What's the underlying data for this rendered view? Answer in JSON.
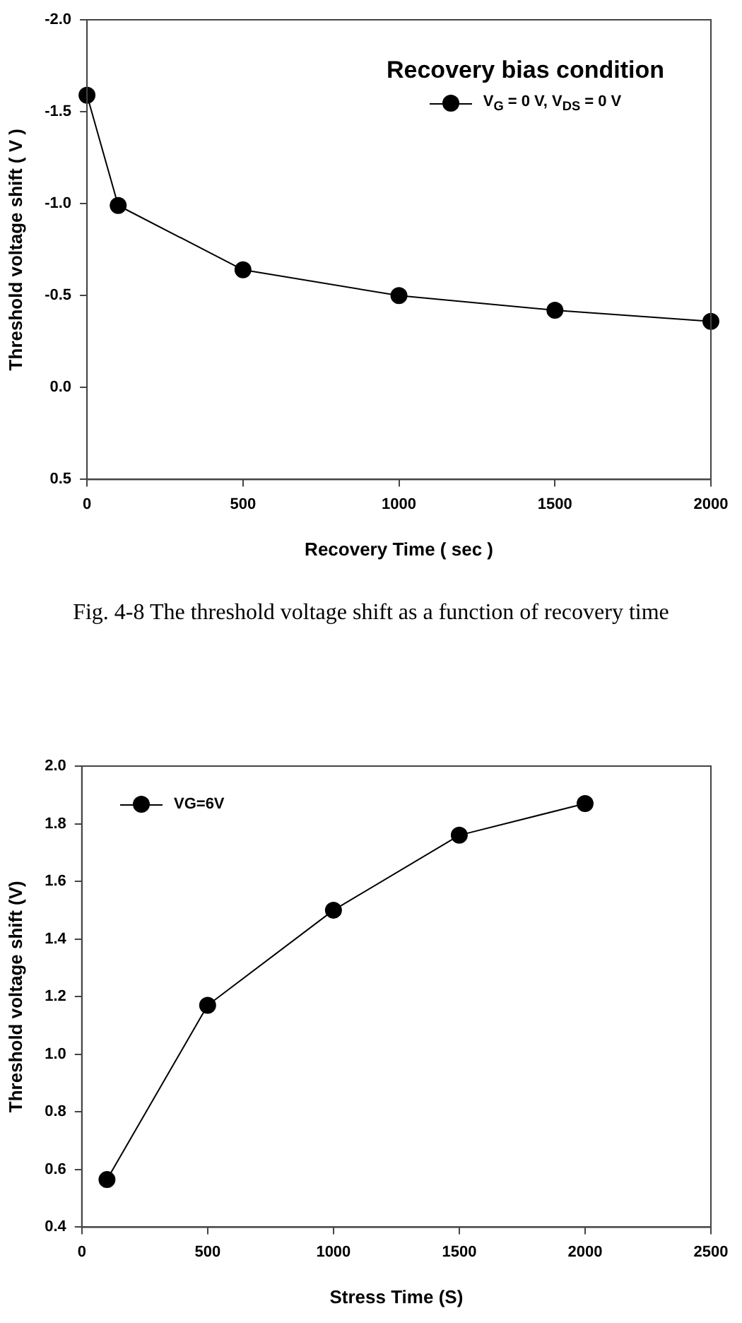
{
  "chart_data": [
    {
      "type": "line",
      "xlabel": "Recovery Time ( sec )",
      "ylabel": "Threshold voltage shift ( V )",
      "legend_title": "Recovery bias condition",
      "legend": "top right",
      "marker": "circle",
      "line_style": "solid",
      "grid": false,
      "x": [
        0,
        100,
        500,
        1000,
        1500,
        2000
      ],
      "series": [
        {
          "name": "V$_{G}$ = 0 V, V$_{DS}$ = 0 V",
          "color": "#000000",
          "values": [
            -1.59,
            -0.99,
            -0.64,
            -0.5,
            -0.42,
            -0.36
          ]
        }
      ],
      "xlim": [
        0,
        2000
      ],
      "xticks": [
        0,
        500,
        1000,
        1500,
        2000
      ],
      "ylim": [
        0.5,
        -2.0
      ],
      "yticks": [
        {
          "value": 0.5,
          "label": "0.5"
        },
        {
          "value": 0,
          "label": "0.0"
        },
        {
          "value": -0.5,
          "label": "-0.5"
        },
        {
          "value": -1,
          "label": "-1.0"
        },
        {
          "value": -1.5,
          "label": "-1.5"
        },
        {
          "value": -2,
          "label": "-2.0"
        }
      ],
      "annotations": [
        "Fig. 4-8 The threshold voltage shift as a function of recovery time"
      ]
    },
    {
      "type": "line",
      "xlabel": "Stress Time (S)",
      "ylabel": "Threshold voltage shift (V)",
      "legend": "top left",
      "marker": "circle",
      "line_style": "solid",
      "grid": false,
      "x": [
        100,
        500,
        1000,
        1500,
        2000
      ],
      "series": [
        {
          "name": "VG=6V",
          "color": "#000000",
          "values": [
            0.565,
            1.17,
            1.5,
            1.76,
            1.87
          ]
        }
      ],
      "xlim": [
        0,
        2500
      ],
      "xticks": [
        0,
        500,
        1000,
        1500,
        2000,
        2500
      ],
      "ylim": [
        0.4,
        2.0
      ],
      "yticks": [
        {
          "value": 0.4,
          "label": "0.4"
        },
        {
          "value": 0.6,
          "label": "0.6"
        },
        {
          "value": 0.8,
          "label": "0.8"
        },
        {
          "value": 1,
          "label": "1.0"
        },
        {
          "value": 1.2,
          "label": "1.2"
        },
        {
          "value": 1.4,
          "label": "1.4"
        },
        {
          "value": 1.6,
          "label": "1.6"
        },
        {
          "value": 1.8,
          "label": "1.8"
        },
        {
          "value": 2,
          "label": "2.0"
        }
      ]
    }
  ]
}
